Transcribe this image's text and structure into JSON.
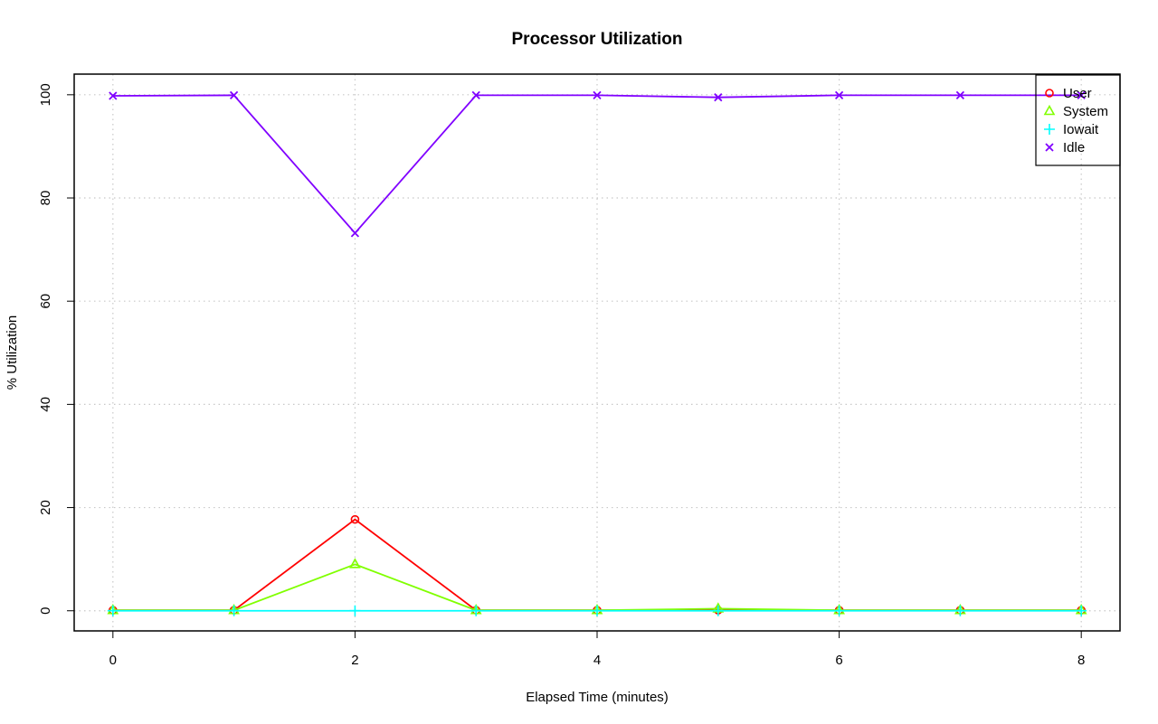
{
  "chart_data": {
    "type": "line",
    "title": "Processor Utilization",
    "xlabel": "Elapsed Time (minutes)",
    "ylabel": "% Utilization",
    "x": [
      0,
      1,
      2,
      3,
      4,
      5,
      6,
      7,
      8
    ],
    "xlim": [
      -0.32,
      8.32
    ],
    "ylim": [
      -3.9,
      104
    ],
    "xticks": [
      0,
      2,
      4,
      6,
      8
    ],
    "yticks": [
      0,
      20,
      40,
      60,
      80,
      100
    ],
    "grid": true,
    "legend_position": "top-right",
    "series": [
      {
        "name": "User",
        "color": "#ff0000",
        "marker": "circle",
        "values": [
          0.1,
          0.1,
          17.7,
          0.1,
          0.1,
          0.1,
          0.1,
          0.1,
          0.1
        ]
      },
      {
        "name": "System",
        "color": "#80ff00",
        "marker": "triangle",
        "values": [
          0.1,
          0.1,
          9.0,
          0.1,
          0.1,
          0.4,
          0.1,
          0.1,
          0.1
        ]
      },
      {
        "name": "Iowait",
        "color": "#00ffff",
        "marker": "plus",
        "values": [
          0.0,
          0.0,
          0.0,
          0.0,
          0.0,
          0.0,
          0.0,
          0.0,
          0.0
        ]
      },
      {
        "name": "Idle",
        "color": "#8000ff",
        "marker": "cross",
        "values": [
          99.8,
          99.9,
          73.2,
          99.9,
          99.9,
          99.5,
          99.9,
          99.9,
          99.9
        ]
      }
    ]
  }
}
